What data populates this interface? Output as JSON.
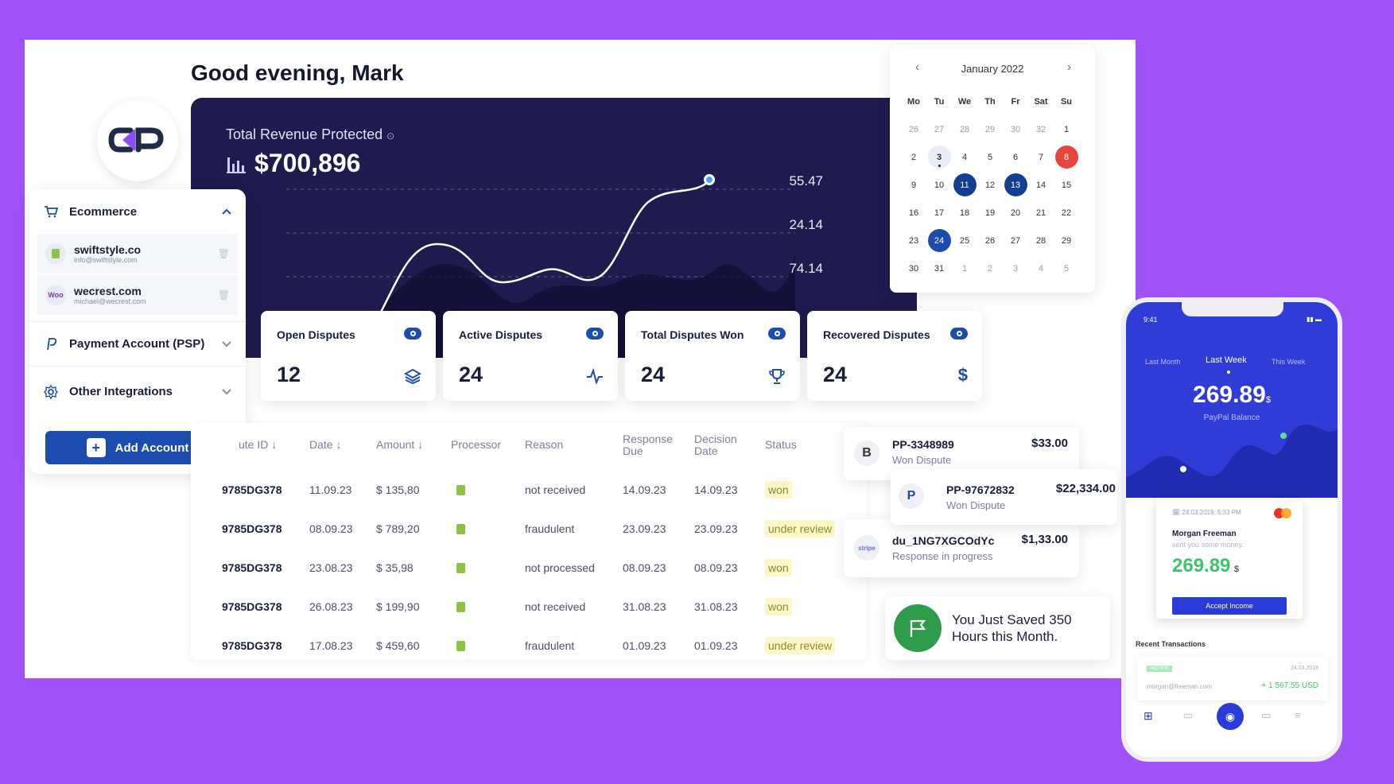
{
  "greeting": "Good evening, Mark",
  "revenue": {
    "label": "Total Revenue Protected",
    "value": "$700,896",
    "y_labels": [
      "55.47",
      "24.14",
      "74.14"
    ]
  },
  "sidebar": {
    "ecommerce_label": "Ecommerce",
    "stores": [
      {
        "name": "swiftstyle.co",
        "email": "info@swiftstyle.com",
        "icon": "shopify-icon"
      },
      {
        "name": "wecrest.com",
        "email": "michael@wecrest.com",
        "icon_text": "Woo"
      }
    ],
    "payment_label": "Payment Account (PSP)",
    "other_label": "Other Integrations",
    "add_account": "Add Account"
  },
  "cards": [
    {
      "title": "Open Disputes",
      "value": "12",
      "icon": "layers-icon"
    },
    {
      "title": "Active Disputes",
      "value": "24",
      "icon": "activity-icon"
    },
    {
      "title": "Total Disputes Won",
      "value": "24",
      "icon": "trophy-icon"
    },
    {
      "title": "Recovered Disputes",
      "value": "24",
      "icon": "dollar-icon"
    }
  ],
  "table": {
    "headers": {
      "id": "ute ID",
      "date": "Date",
      "amount": "Amount",
      "processor": "Processor",
      "reason": "Reason",
      "response_due_1": "Response",
      "response_due_2": "Due",
      "decision_1": "Decision",
      "decision_2": "Date",
      "status": "Status"
    },
    "rows": [
      {
        "id": "9785DG378",
        "date": "11.09.23",
        "amount": "$ 135,80",
        "reason": "not received",
        "due": "14.09.23",
        "decision": "14.09.23",
        "status": "won"
      },
      {
        "id": "9785DG378",
        "date": "08.09.23",
        "amount": "$ 789,20",
        "reason": "fraudulent",
        "due": "23.09.23",
        "decision": "23.09.23",
        "status": "under review"
      },
      {
        "id": "9785DG378",
        "date": "23.08.23",
        "amount": "$ 35,98",
        "reason": "not processed",
        "due": "08.09.23",
        "decision": "08.09.23",
        "status": "won"
      },
      {
        "id": "9785DG378",
        "date": "26.08.23",
        "amount": "$ 199,90",
        "reason": "not received",
        "due": "31.08.23",
        "decision": "31.08.23",
        "status": "won"
      },
      {
        "id": "9785DG378",
        "date": "17.08.23",
        "amount": "$ 459,60",
        "reason": "fraudulent",
        "due": "01.09.23",
        "decision": "01.09.23",
        "status": "under review"
      }
    ]
  },
  "calendar": {
    "month": "January 2022",
    "days_header": [
      "Mo",
      "Tu",
      "We",
      "Th",
      "Fr",
      "Sat",
      "Su"
    ],
    "weeks": [
      [
        "26",
        "27",
        "28",
        "29",
        "30",
        "32",
        "1"
      ],
      [
        "2",
        "3",
        "4",
        "5",
        "6",
        "7",
        "8"
      ],
      [
        "9",
        "10",
        "11",
        "12",
        "13",
        "14",
        "15"
      ],
      [
        "16",
        "17",
        "18",
        "19",
        "20",
        "21",
        "22"
      ],
      [
        "23",
        "24",
        "25",
        "26",
        "27",
        "28",
        "29"
      ],
      [
        "30",
        "31",
        "1",
        "2",
        "3",
        "4",
        "5"
      ]
    ]
  },
  "transactions": [
    {
      "id": "PP-3348989",
      "sub": "Won Dispute",
      "amount": "$33.00",
      "icon_text": "B"
    },
    {
      "id": "PP-97672832",
      "sub": "Won Dispute",
      "amount": "$22,334.00",
      "icon_text": "P"
    },
    {
      "id": "du_1NG7XGCOdYc",
      "sub": "Response in progress",
      "amount": "$1,33.00",
      "icon_text": "stripe"
    }
  ],
  "saved_message": "You Just Saved 350 Hours this Month.",
  "phone": {
    "time": "9:41",
    "tabs": [
      "Last Month",
      "Last Week",
      "This Week"
    ],
    "balance": "269.89",
    "balance_unit": "$",
    "balance_label": "PayPal Balance",
    "card_date": "24.03.2019, 5:33 PM",
    "card_name": "Morgan Freeman",
    "card_msg": "sent you some money.",
    "card_amount": "269.89",
    "card_unit": "$",
    "accept": "Accept Income",
    "recent_label": "Recent Transactions",
    "recent_badge": "INCOME",
    "recent_date": "24.03.2019",
    "recent_email": "morgan@freeman.com",
    "recent_amount": "+ 1 567.55 USD"
  },
  "colors": {
    "background": "#9f52f6",
    "hero": "#1f1b4f",
    "accent": "#1b4cae",
    "won_badge": "#fbf7c9",
    "saved_green": "#2e9c4a"
  }
}
